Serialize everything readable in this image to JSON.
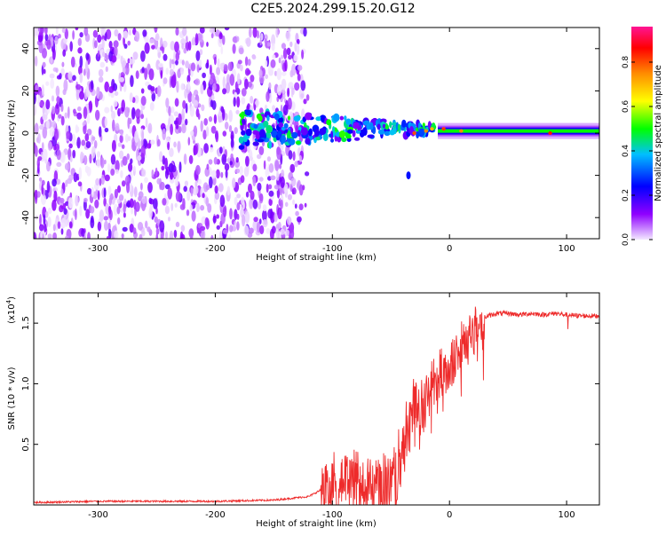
{
  "figure": {
    "title": "C2E5.2024.299.15.20.G12"
  },
  "colorbar": {
    "label": "Normalized spectral amplitude",
    "ticks": [
      "0.0",
      "0.2",
      "0.4",
      "0.6",
      "0.8"
    ],
    "tick_values": [
      0.0,
      0.2,
      0.4,
      0.6,
      0.8
    ],
    "range": [
      0,
      0.96
    ],
    "colors": [
      "#f3e8ff",
      "#8f00ff",
      "#0000ff",
      "#00bfff",
      "#00ff00",
      "#ffff00",
      "#ff8c00",
      "#ff0000",
      "#ff1493"
    ]
  },
  "chart_data": [
    {
      "type": "heatmap",
      "title": "C2E5.2024.299.15.20.G12",
      "xlabel": "Height of straight line (km)",
      "ylabel": "Frequency (Hz)",
      "xlim": [
        -355,
        128
      ],
      "ylim": [
        -50,
        50
      ],
      "xticks": [
        -300,
        -200,
        -100,
        0,
        100
      ],
      "xtick_labels": [
        "-300",
        "-200",
        "-100",
        "0",
        "100"
      ],
      "yticks": [
        -40,
        -20,
        0,
        20,
        40
      ],
      "ytick_labels": [
        "-40",
        "-20",
        "0",
        "20",
        "40"
      ],
      "zlabel": "Normalized spectral amplitude",
      "zlim": [
        0,
        0.96
      ],
      "features": {
        "noise_region_x": [
          -355,
          -120
        ],
        "transition_region_x": [
          -180,
          -10
        ],
        "stable_tone_x": [
          -10,
          128
        ],
        "stable_tone_frequency_hz": 1,
        "stable_tone_amplitude": 0.5,
        "isolated_blob": {
          "x": -35,
          "y": -20
        }
      }
    },
    {
      "type": "line",
      "xlabel": "Height of straight line (km)",
      "ylabel": "SNR (10 * v/v)",
      "y_multiplier_label": "(x10",
      "y_multiplier_exponent": "4",
      "y_multiplier_close": ")",
      "xlim": [
        -355,
        128
      ],
      "ylim": [
        0,
        1.75
      ],
      "xticks": [
        -300,
        -200,
        -100,
        0,
        100
      ],
      "xtick_labels": [
        "-300",
        "-200",
        "-100",
        "0",
        "100"
      ],
      "yticks": [
        0.5,
        1.0,
        1.5
      ],
      "ytick_labels": [
        "0.5",
        "1.0",
        "1.5"
      ],
      "color": "#ee2b2b",
      "series": [
        {
          "x": [
            -355,
            -300,
            -200,
            -150,
            -120,
            -105,
            -90,
            -75,
            -60,
            -50,
            -45,
            -40,
            -35,
            -30,
            -25,
            -20,
            -15,
            -10,
            -5,
            0,
            10,
            20,
            30,
            40,
            50,
            60,
            70,
            80,
            90,
            100,
            110,
            120,
            128
          ],
          "y": [
            0.02,
            0.03,
            0.03,
            0.04,
            0.07,
            0.15,
            0.22,
            0.2,
            0.18,
            0.22,
            0.3,
            0.45,
            0.7,
            0.85,
            0.8,
            0.9,
            1.0,
            1.05,
            1.08,
            1.12,
            1.3,
            1.45,
            1.55,
            1.58,
            1.58,
            1.57,
            1.58,
            1.57,
            1.58,
            1.57,
            1.56,
            1.56,
            1.56
          ]
        }
      ]
    }
  ]
}
